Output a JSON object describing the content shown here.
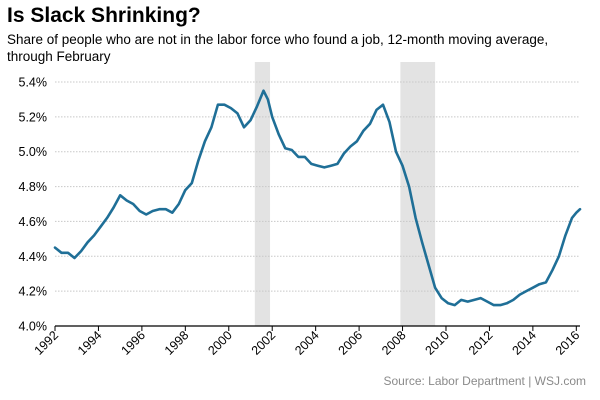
{
  "header": {
    "title": "Is Slack Shrinking?",
    "subtitle": "Share of people who are not in the labor force who found a job, 12-month moving average, through February"
  },
  "footer": {
    "source": "Source: Labor Department  |  WSJ.com"
  },
  "colors": {
    "line": "#1f6f97",
    "recession": "#e3e3e3",
    "grid": "#c8c8c8"
  },
  "chart_data": {
    "type": "line",
    "title": "Is Slack Shrinking?",
    "xlabel": "",
    "ylabel": "",
    "xlim": [
      1992,
      2016.17
    ],
    "ylim": [
      4.0,
      5.4
    ],
    "grid": "horizontal",
    "x_ticks": [
      1992,
      1994,
      1996,
      1998,
      2000,
      2002,
      2004,
      2006,
      2008,
      2010,
      2012,
      2014,
      2016
    ],
    "y_ticks": [
      {
        "value": 4.0,
        "label": "4.0%"
      },
      {
        "value": 4.2,
        "label": "4.2%"
      },
      {
        "value": 4.4,
        "label": "4.4%"
      },
      {
        "value": 4.6,
        "label": "4.6%"
      },
      {
        "value": 4.8,
        "label": "4.8%"
      },
      {
        "value": 5.0,
        "label": "5.0%"
      },
      {
        "value": 5.2,
        "label": "5.2%"
      },
      {
        "value": 5.4,
        "label": "5.4%"
      }
    ],
    "shaded_periods": [
      [
        2001.2,
        2001.9
      ],
      [
        2007.9,
        2009.5
      ]
    ],
    "series": [
      {
        "values": [
          [
            1992.0,
            4.45
          ],
          [
            1992.3,
            4.42
          ],
          [
            1992.6,
            4.42
          ],
          [
            1992.9,
            4.39
          ],
          [
            1993.2,
            4.43
          ],
          [
            1993.5,
            4.48
          ],
          [
            1993.8,
            4.52
          ],
          [
            1994.1,
            4.57
          ],
          [
            1994.4,
            4.62
          ],
          [
            1994.7,
            4.68
          ],
          [
            1995.0,
            4.75
          ],
          [
            1995.3,
            4.72
          ],
          [
            1995.6,
            4.7
          ],
          [
            1995.9,
            4.66
          ],
          [
            1996.2,
            4.64
          ],
          [
            1996.5,
            4.66
          ],
          [
            1996.8,
            4.67
          ],
          [
            1997.1,
            4.67
          ],
          [
            1997.4,
            4.65
          ],
          [
            1997.7,
            4.7
          ],
          [
            1998.0,
            4.78
          ],
          [
            1998.3,
            4.82
          ],
          [
            1998.6,
            4.95
          ],
          [
            1998.9,
            5.06
          ],
          [
            1999.2,
            5.14
          ],
          [
            1999.5,
            5.27
          ],
          [
            1999.8,
            5.27
          ],
          [
            2000.1,
            5.25
          ],
          [
            2000.4,
            5.22
          ],
          [
            2000.7,
            5.14
          ],
          [
            2001.0,
            5.18
          ],
          [
            2001.3,
            5.26
          ],
          [
            2001.6,
            5.35
          ],
          [
            2001.8,
            5.3
          ],
          [
            2002.0,
            5.2
          ],
          [
            2002.3,
            5.1
          ],
          [
            2002.6,
            5.02
          ],
          [
            2002.9,
            5.01
          ],
          [
            2003.2,
            4.97
          ],
          [
            2003.5,
            4.97
          ],
          [
            2003.8,
            4.93
          ],
          [
            2004.1,
            4.92
          ],
          [
            2004.4,
            4.91
          ],
          [
            2004.7,
            4.92
          ],
          [
            2005.0,
            4.93
          ],
          [
            2005.3,
            4.99
          ],
          [
            2005.6,
            5.03
          ],
          [
            2005.9,
            5.06
          ],
          [
            2006.2,
            5.12
          ],
          [
            2006.5,
            5.16
          ],
          [
            2006.8,
            5.24
          ],
          [
            2007.1,
            5.27
          ],
          [
            2007.4,
            5.17
          ],
          [
            2007.7,
            5.0
          ],
          [
            2008.0,
            4.92
          ],
          [
            2008.3,
            4.8
          ],
          [
            2008.6,
            4.62
          ],
          [
            2008.9,
            4.48
          ],
          [
            2009.2,
            4.35
          ],
          [
            2009.5,
            4.22
          ],
          [
            2009.8,
            4.16
          ],
          [
            2010.1,
            4.13
          ],
          [
            2010.4,
            4.12
          ],
          [
            2010.7,
            4.15
          ],
          [
            2011.0,
            4.14
          ],
          [
            2011.3,
            4.15
          ],
          [
            2011.6,
            4.16
          ],
          [
            2011.9,
            4.14
          ],
          [
            2012.2,
            4.12
          ],
          [
            2012.5,
            4.12
          ],
          [
            2012.8,
            4.13
          ],
          [
            2013.1,
            4.15
          ],
          [
            2013.4,
            4.18
          ],
          [
            2013.7,
            4.2
          ],
          [
            2014.0,
            4.22
          ],
          [
            2014.3,
            4.24
          ],
          [
            2014.6,
            4.25
          ],
          [
            2014.9,
            4.32
          ],
          [
            2015.2,
            4.4
          ],
          [
            2015.5,
            4.52
          ],
          [
            2015.8,
            4.62
          ],
          [
            2016.0,
            4.65
          ],
          [
            2016.17,
            4.67
          ]
        ]
      }
    ]
  }
}
